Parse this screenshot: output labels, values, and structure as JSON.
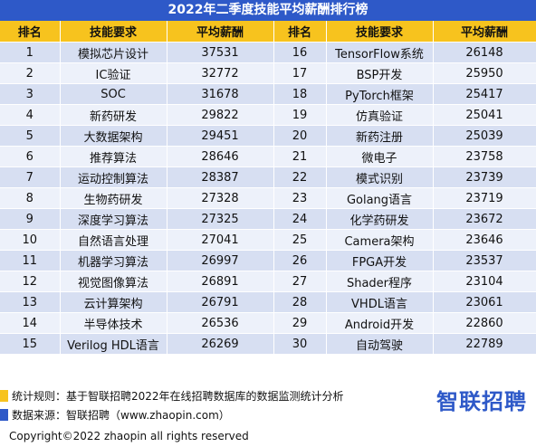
{
  "title": "2022年二季度技能平均薪酬排行榜",
  "headers": [
    "排名",
    "技能要求",
    "平均薪酬",
    "排名",
    "技能要求",
    "平均薪酬"
  ],
  "rows": [
    {
      "rank_a": "1",
      "skill_a": "模拟芯片设计",
      "salary_a": "37531",
      "rank_b": "16",
      "skill_b": "TensorFlow系统",
      "salary_b": "26148"
    },
    {
      "rank_a": "2",
      "skill_a": "IC验证",
      "salary_a": "32772",
      "rank_b": "17",
      "skill_b": "BSP开发",
      "salary_b": "25950"
    },
    {
      "rank_a": "3",
      "skill_a": "SOC",
      "salary_a": "31678",
      "rank_b": "18",
      "skill_b": "PyTorch框架",
      "salary_b": "25417"
    },
    {
      "rank_a": "4",
      "skill_a": "新药研发",
      "salary_a": "29822",
      "rank_b": "19",
      "skill_b": "仿真验证",
      "salary_b": "25041"
    },
    {
      "rank_a": "5",
      "skill_a": "大数据架构",
      "salary_a": "29451",
      "rank_b": "20",
      "skill_b": "新药注册",
      "salary_b": "25039"
    },
    {
      "rank_a": "6",
      "skill_a": "推荐算法",
      "salary_a": "28646",
      "rank_b": "21",
      "skill_b": "微电子",
      "salary_b": "23758"
    },
    {
      "rank_a": "7",
      "skill_a": "运动控制算法",
      "salary_a": "28387",
      "rank_b": "22",
      "skill_b": "模式识别",
      "salary_b": "23739"
    },
    {
      "rank_a": "8",
      "skill_a": "生物药研发",
      "salary_a": "27328",
      "rank_b": "23",
      "skill_b": "Golang语言",
      "salary_b": "23719"
    },
    {
      "rank_a": "9",
      "skill_a": "深度学习算法",
      "salary_a": "27325",
      "rank_b": "24",
      "skill_b": "化学药研发",
      "salary_b": "23672"
    },
    {
      "rank_a": "10",
      "skill_a": "自然语言处理",
      "salary_a": "27041",
      "rank_b": "25",
      "skill_b": "Camera架构",
      "salary_b": "23646"
    },
    {
      "rank_a": "11",
      "skill_a": "机器学习算法",
      "salary_a": "26997",
      "rank_b": "26",
      "skill_b": "FPGA开发",
      "salary_b": "23537"
    },
    {
      "rank_a": "12",
      "skill_a": "视觉图像算法",
      "salary_a": "26891",
      "rank_b": "27",
      "skill_b": "Shader程序",
      "salary_b": "23104"
    },
    {
      "rank_a": "13",
      "skill_a": "云计算架构",
      "salary_a": "26791",
      "rank_b": "28",
      "skill_b": "VHDL语言",
      "salary_b": "23061"
    },
    {
      "rank_a": "14",
      "skill_a": "半导体技术",
      "salary_a": "26536",
      "rank_b": "29",
      "skill_b": "Android开发",
      "salary_b": "22860"
    },
    {
      "rank_a": "15",
      "skill_a": "Verilog HDL语言",
      "salary_a": "26269",
      "rank_b": "30",
      "skill_b": "自动驾驶",
      "salary_b": "22789"
    }
  ],
  "notes": {
    "rule": "统计规则：基于智联招聘2022年在线招聘数据库的数据监测统计分析",
    "source": "数据来源：智联招聘（www.zhaopin.com）"
  },
  "logo": "智联招聘",
  "copyright": "Copyright©2022 zhaopin all rights reserved",
  "colors": {
    "title_bar": "#2e59c8",
    "header": "#f7c31e",
    "row_dark": "#d7dff2",
    "row_light": "#edf1fa",
    "accent_blue": "#2e59c8"
  }
}
